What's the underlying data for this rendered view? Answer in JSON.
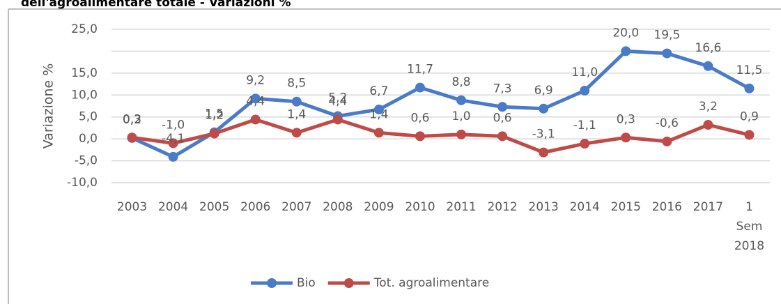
{
  "chart_data": {
    "type": "line",
    "title": "dell'agroalimentare totale - Variazioni %",
    "y_label": "Variazione %",
    "categories": [
      "2003",
      "2004",
      "2005",
      "2006",
      "2007",
      "2008",
      "2009",
      "2010",
      "2011",
      "2012",
      "2013",
      "2014",
      "2015",
      "2016",
      "2017",
      "1 Sem 2018"
    ],
    "series": [
      {
        "name": "Bio",
        "color": "#4a7bc8",
        "values": [
          0.2,
          -4.1,
          1.5,
          9.2,
          8.5,
          5.2,
          6.7,
          11.7,
          8.8,
          7.3,
          6.9,
          11.0,
          20.0,
          19.5,
          16.6,
          11.5
        ],
        "value_labels": [
          "0,2",
          "-4,1",
          "1,5",
          "9,2",
          "8,5",
          "5,2",
          "6,7",
          "11,7",
          "8,8",
          "7,3",
          "6,9",
          "11,0",
          "20,0",
          "19,5",
          "16,6",
          "11,5"
        ]
      },
      {
        "name": "Tot. agroalimentare",
        "color": "#be4b48",
        "values": [
          0.3,
          -1.0,
          1.2,
          4.4,
          1.4,
          4.4,
          1.4,
          0.6,
          1.0,
          0.6,
          -3.1,
          -1.1,
          0.3,
          -0.6,
          3.2,
          0.9
        ],
        "value_labels": [
          "0,3",
          "-1,0",
          "1,2",
          "4,4",
          "1,4",
          "4,4",
          "1,4",
          "0,6",
          "1,0",
          "0,6",
          "-3,1",
          "-1,1",
          "0,3",
          "-0,6",
          "3,2",
          "0,9"
        ]
      }
    ],
    "ylim": [
      -10,
      25
    ],
    "yticks": [
      {
        "value": -10,
        "label": "-10,0"
      },
      {
        "value": -5,
        "label": "-5,0"
      },
      {
        "value": 0,
        "label": "0,0"
      },
      {
        "value": 5,
        "label": "5,0"
      },
      {
        "value": 10,
        "label": "10,0"
      },
      {
        "value": 15,
        "label": "15,0"
      },
      {
        "value": 20,
        "label": null
      },
      {
        "value": 25,
        "label": "25,0"
      }
    ],
    "grid": true,
    "legend": "bottom"
  }
}
